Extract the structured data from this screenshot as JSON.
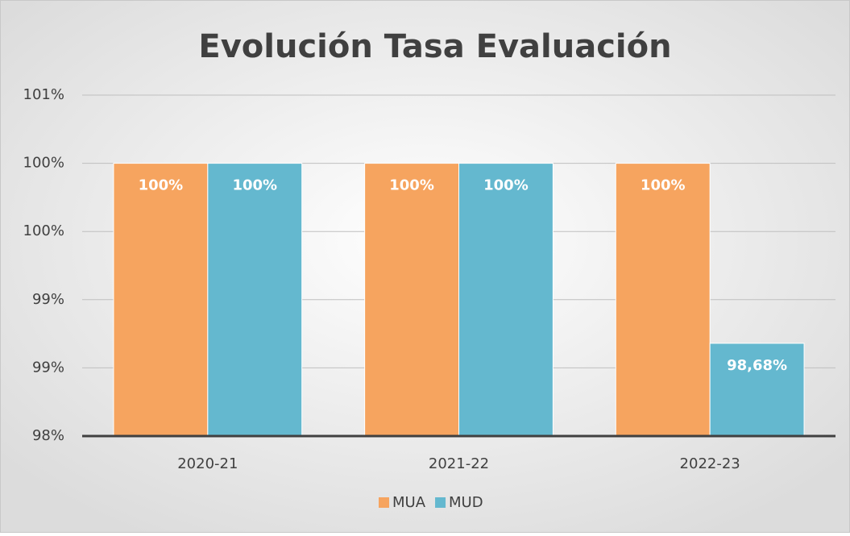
{
  "chart_data": {
    "type": "bar",
    "title": "Evolución Tasa Evaluación",
    "categories": [
      "2020-21",
      "2021-22",
      "2022-23"
    ],
    "series": [
      {
        "name": "MUA",
        "color": "#f6a45f",
        "values": [
          100,
          100,
          100
        ],
        "value_labels": [
          "100%",
          "100%",
          "100%"
        ]
      },
      {
        "name": "MUD",
        "color": "#64b8cf",
        "values": [
          100,
          100,
          98.68
        ],
        "value_labels": [
          "100%",
          "100%",
          "98,68%"
        ]
      }
    ],
    "ylim": [
      98,
      100.5
    ],
    "yticks": [
      {
        "value": 98,
        "label": "98%"
      },
      {
        "value": 98.5,
        "label": "99%"
      },
      {
        "value": 99,
        "label": "99%"
      },
      {
        "value": 99.5,
        "label": "100%"
      },
      {
        "value": 100,
        "label": "100%"
      },
      {
        "value": 100.5,
        "label": "101%"
      }
    ],
    "grid": true,
    "legend": "bottom"
  }
}
